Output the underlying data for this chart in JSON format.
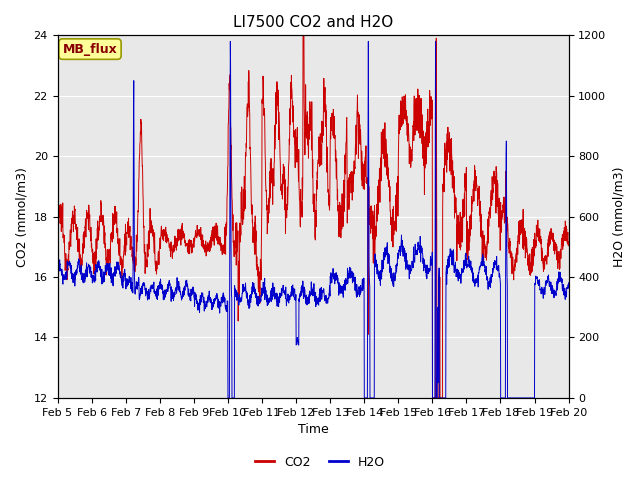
{
  "title": "LI7500 CO2 and H2O",
  "xlabel": "Time",
  "ylabel_left": "CO2 (mmol/m3)",
  "ylabel_right": "H2O (mmol/m3)",
  "legend_label": "MB_flux",
  "co2_ylim": [
    12,
    24
  ],
  "h2o_ylim": [
    0,
    1200
  ],
  "co2_yticks": [
    12,
    14,
    16,
    18,
    20,
    22,
    24
  ],
  "h2o_yticks": [
    0,
    200,
    400,
    600,
    800,
    1000,
    1200
  ],
  "x_tick_labels": [
    "Feb 5",
    "Feb 6",
    "Feb 7",
    "Feb 8",
    "Feb 9",
    "Feb 10",
    "Feb 11",
    "Feb 12",
    "Feb 13",
    "Feb 14",
    "Feb 15",
    "Feb 16",
    "Feb 17",
    "Feb 18",
    "Feb 19",
    "Feb 20"
  ],
  "co2_color": "#cc0000",
  "h2o_color": "#0000cc",
  "background_color": "#e8e8e8",
  "legend_box_color": "#ffff99",
  "legend_box_edge": "#999900",
  "legend_text_color": "#880000",
  "title_fontsize": 11,
  "axis_label_fontsize": 9,
  "tick_fontsize": 8
}
